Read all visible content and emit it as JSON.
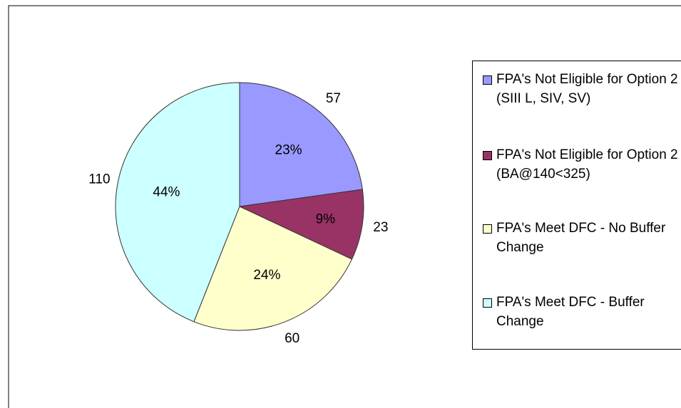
{
  "chart_data": {
    "type": "pie",
    "categories": [
      "FPA's Not Eligible for Option 2 (SIII L, SIV, SV)",
      "FPA's Not Eligible for Option 2 (BA@140<325)",
      "FPA's Meet DFC - No Buffer Change",
      "FPA's Meet DFC - Buffer Change"
    ],
    "values": [
      57,
      23,
      60,
      110
    ],
    "percent_labels": [
      "23%",
      "9%",
      "24%",
      "44%"
    ],
    "colors": [
      "#9999ff",
      "#993366",
      "#ffffcc",
      "#ccffff"
    ],
    "legend": "right"
  }
}
